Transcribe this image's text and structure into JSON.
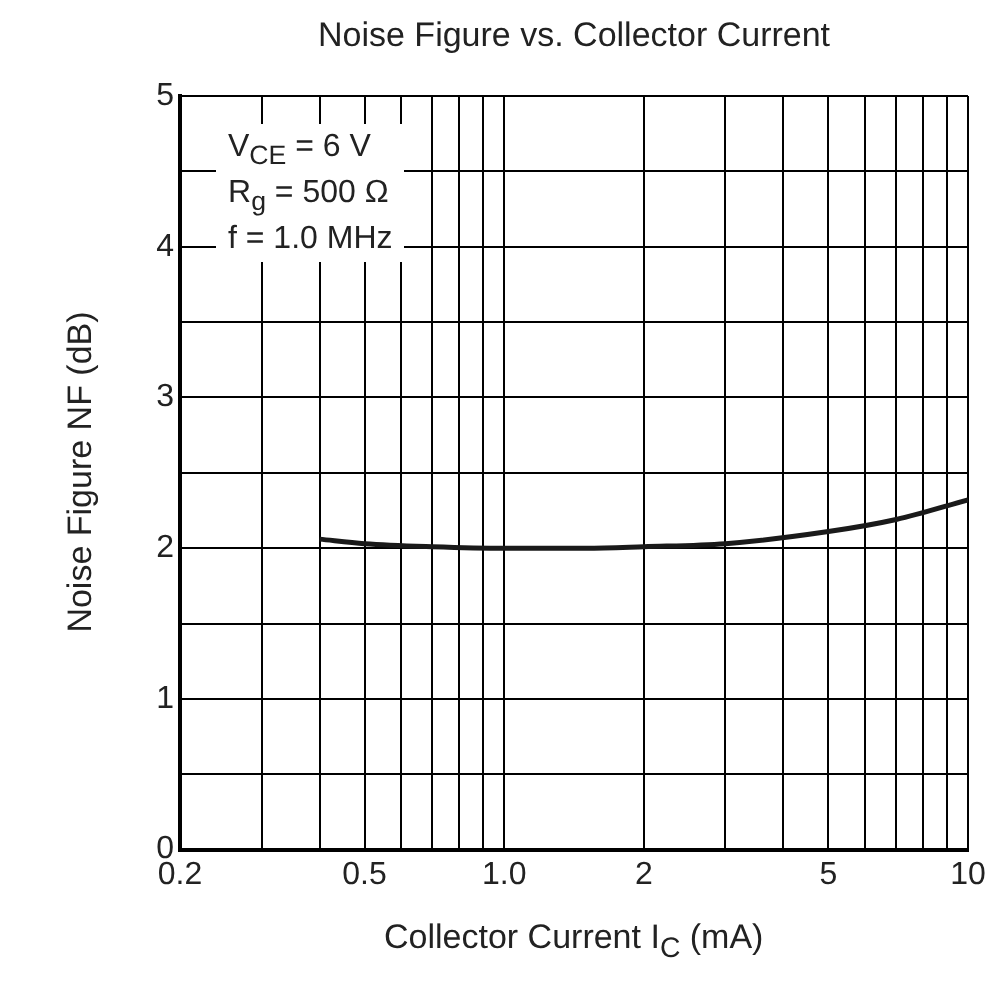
{
  "chart_data": {
    "type": "line",
    "title": "Noise Figure vs. Collector Current",
    "xlabel": "Collector Current   I$_{C}$  (mA)",
    "ylabel": "Noise Figure   NF   (dB)",
    "annotations": [
      "V$_{CE}$ = 6 V",
      "R$_{g}$ = 500 Ω",
      "f = 1.0 MHz"
    ],
    "log": "x",
    "grid": true,
    "marker": "none",
    "line_style": "solid",
    "xlim": [
      0.2,
      10
    ],
    "ylim": [
      0,
      5
    ],
    "xticks": [
      0.2,
      {
        "value": 0.3,
        "label": null
      },
      {
        "value": 0.4,
        "label": null
      },
      0.5,
      {
        "value": 0.6,
        "label": null
      },
      {
        "value": 0.7,
        "label": null
      },
      {
        "value": 0.8,
        "label": null
      },
      {
        "value": 0.9,
        "label": null
      },
      {
        "value": 1,
        "label": "1.0"
      },
      2,
      {
        "value": 3,
        "label": null
      },
      {
        "value": 4,
        "label": null
      },
      5,
      {
        "value": 6,
        "label": null
      },
      {
        "value": 7,
        "label": null
      },
      {
        "value": 8,
        "label": null
      },
      {
        "value": 9,
        "label": null
      },
      10
    ],
    "yticks": [
      0,
      {
        "value": 0.5,
        "label": null
      },
      1,
      {
        "value": 1.5,
        "label": null
      },
      2,
      {
        "value": 2.5,
        "label": null
      },
      3,
      {
        "value": 3.5,
        "label": null
      },
      4,
      {
        "value": 4.5,
        "label": null
      },
      5
    ],
    "series": [
      {
        "color": "#1a1a1a",
        "x": [
          0.4,
          0.5,
          0.7,
          1,
          1.5,
          2,
          3,
          5,
          7,
          10
        ],
        "values": [
          2.06,
          2.03,
          2.01,
          2.0,
          2.0,
          2.01,
          2.03,
          2.11,
          2.19,
          2.32
        ]
      }
    ]
  }
}
